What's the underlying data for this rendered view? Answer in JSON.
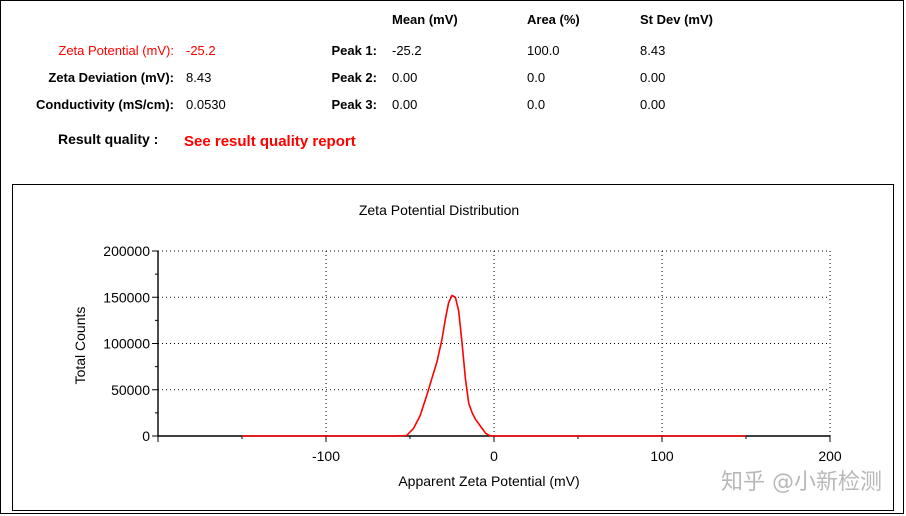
{
  "summary": {
    "zeta_potential_label": "Zeta Potential (mV):",
    "zeta_potential_value": "-25.2",
    "zeta_deviation_label": "Zeta Deviation (mV):",
    "zeta_deviation_value": "8.43",
    "conductivity_label": "Conductivity (mS/cm):",
    "conductivity_value": "0.0530",
    "result_quality_label": "Result quality :",
    "result_quality_link": "See result quality report"
  },
  "peaks": {
    "headers": {
      "mean": "Mean (mV)",
      "area": "Area (%)",
      "stdev": "St Dev (mV)"
    },
    "rows": [
      {
        "label": "Peak 1:",
        "mean": "-25.2",
        "area": "100.0",
        "stdev": "8.43"
      },
      {
        "label": "Peak 2:",
        "mean": "0.00",
        "area": "0.0",
        "stdev": "0.00"
      },
      {
        "label": "Peak 3:",
        "mean": "0.00",
        "area": "0.0",
        "stdev": "0.00"
      }
    ]
  },
  "colors": {
    "accent": "#ff0000",
    "grid": "#000000"
  },
  "watermark": "知乎 @小新检测",
  "chart_data": {
    "type": "line",
    "title": "Zeta Potential Distribution",
    "xlabel": "Apparent Zeta Potential (mV)",
    "ylabel": "Total Counts",
    "xlim": [
      -200,
      200
    ],
    "ylim": [
      0,
      200000
    ],
    "xticks": [
      -100,
      0,
      100,
      200
    ],
    "yticks": [
      0,
      50000,
      100000,
      150000,
      200000
    ],
    "grid": true,
    "series": [
      {
        "name": "Total Counts",
        "color": "#ff0000",
        "x": [
          -150,
          -100,
          -60,
          -52,
          -48,
          -44,
          -40,
          -37,
          -34,
          -31,
          -29,
          -27,
          -25,
          -23,
          -21,
          -19,
          -17,
          -15,
          -13,
          -11,
          -9,
          -7,
          -5,
          -3,
          -1,
          0,
          50,
          100,
          150
        ],
        "y": [
          0,
          0,
          0,
          500,
          8000,
          22000,
          44000,
          62000,
          80000,
          104000,
          126000,
          144000,
          152000,
          150000,
          135000,
          100000,
          62000,
          35000,
          25000,
          18000,
          13000,
          8000,
          3000,
          800,
          0,
          0,
          0,
          0,
          0
        ]
      }
    ]
  }
}
